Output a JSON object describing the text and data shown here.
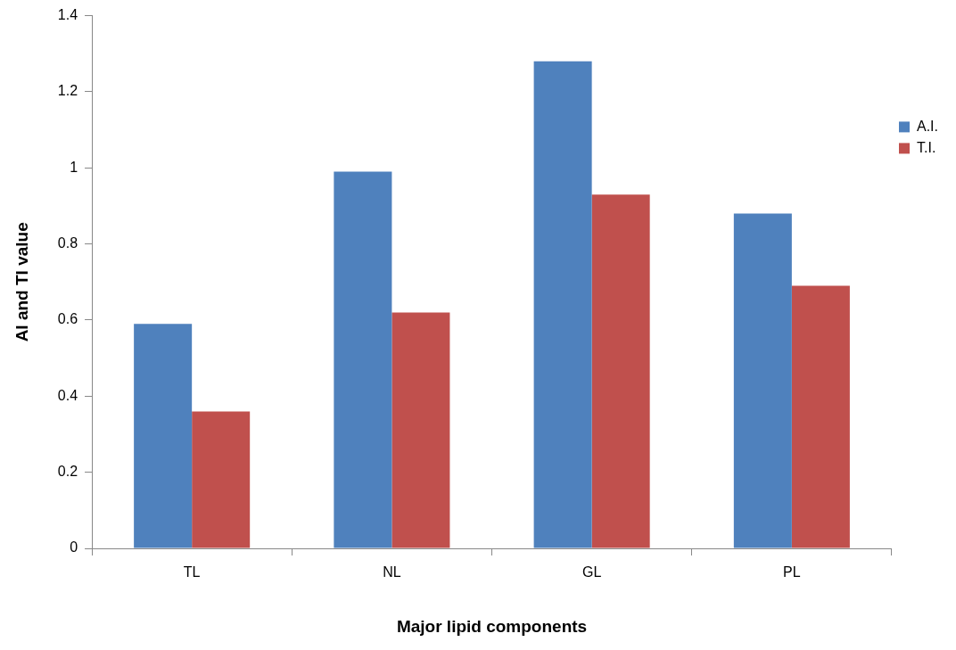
{
  "chart_data": {
    "type": "bar",
    "xlabel": "Major lipid components",
    "ylabel": "AI and TI value",
    "categories": [
      "TL",
      "NL",
      "GL",
      "PL"
    ],
    "series": [
      {
        "name": "A.I.",
        "color": "#4f81bd",
        "values": [
          0.59,
          0.99,
          1.28,
          0.88
        ]
      },
      {
        "name": "T.I.",
        "color": "#c0504d",
        "values": [
          0.36,
          0.62,
          0.93,
          0.69
        ]
      }
    ],
    "ylim": [
      0,
      1.4
    ],
    "yticks": [
      0,
      0.2,
      0.4,
      0.6,
      0.8,
      1,
      1.2,
      1.4
    ],
    "grid": false,
    "legend": "right"
  }
}
